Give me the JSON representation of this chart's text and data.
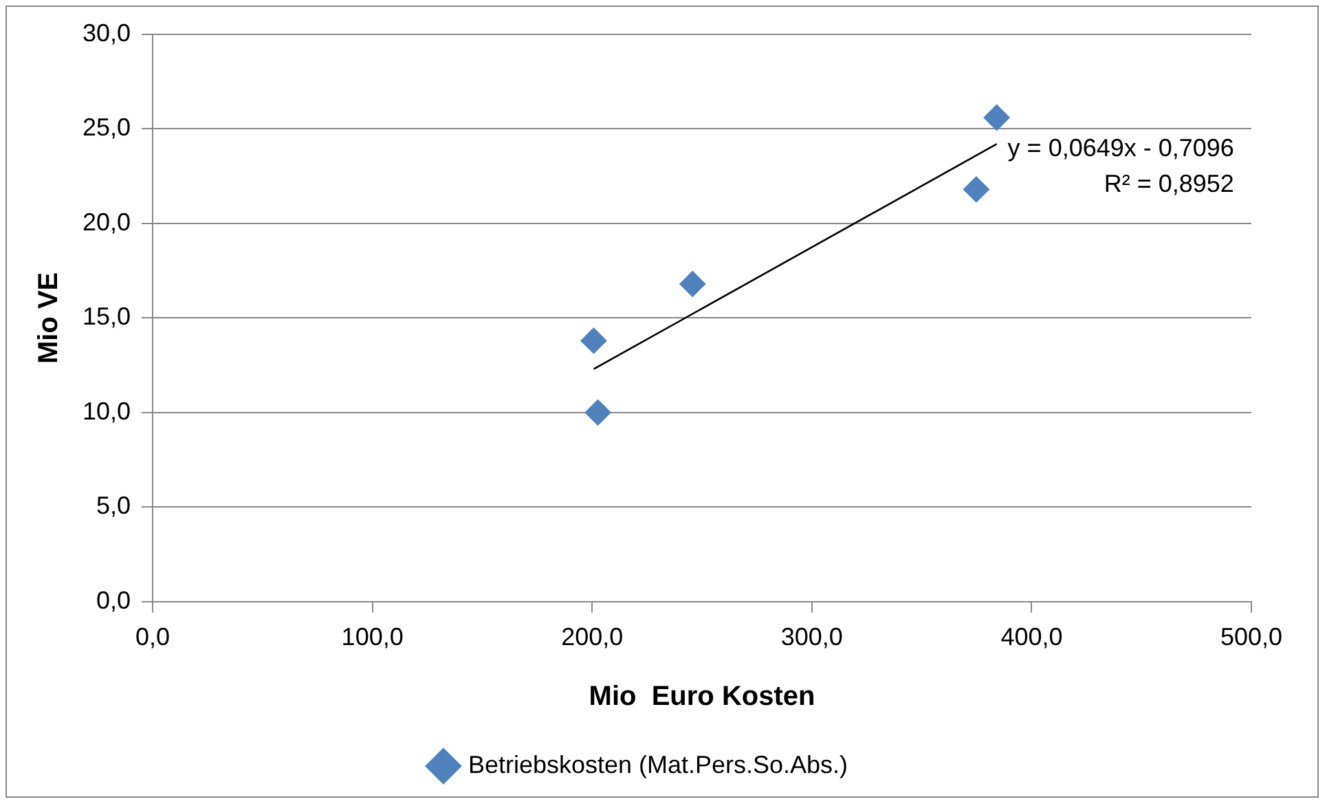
{
  "chart_data": {
    "type": "scatter",
    "xlabel": "Mio  Euro Kosten",
    "ylabel": "Mio VE",
    "xlim": [
      0,
      500
    ],
    "xticks": [
      {
        "value": 0,
        "label": "0,0"
      },
      {
        "value": 100,
        "label": "100,0"
      },
      {
        "value": 200,
        "label": "200,0"
      },
      {
        "value": 300,
        "label": "300,0"
      },
      {
        "value": 400,
        "label": "400,0"
      },
      {
        "value": 500,
        "label": "500,0"
      }
    ],
    "ylim": [
      0,
      30
    ],
    "yticks": [
      {
        "value": 0,
        "label": "0,0"
      },
      {
        "value": 5,
        "label": "5,0"
      },
      {
        "value": 10,
        "label": "10,0"
      },
      {
        "value": 15,
        "label": "15,0"
      },
      {
        "value": 20,
        "label": "20,0"
      },
      {
        "value": 25,
        "label": "25,0"
      },
      {
        "value": 30,
        "label": "30,0"
      }
    ],
    "grid": "y",
    "legend": "bottom",
    "marker": "diamond",
    "series": [
      {
        "name": "Betriebskosten (Mat.Pers.So.Abs.)",
        "color": "#4f81bd",
        "x": [
          200.7,
          202.6,
          245.7,
          374.8,
          384.1
        ],
        "values": [
          13.8,
          10.0,
          16.8,
          21.8,
          25.6
        ]
      },
      {
        "type": "line",
        "color": "#000000",
        "x": [
          200.7,
          384.1
        ],
        "values": [
          12.3,
          24.2
        ],
        "marker": "none"
      }
    ],
    "annotations": [
      "y = 0,0649x - 0,7096",
      "R² = 0,8952"
    ]
  }
}
